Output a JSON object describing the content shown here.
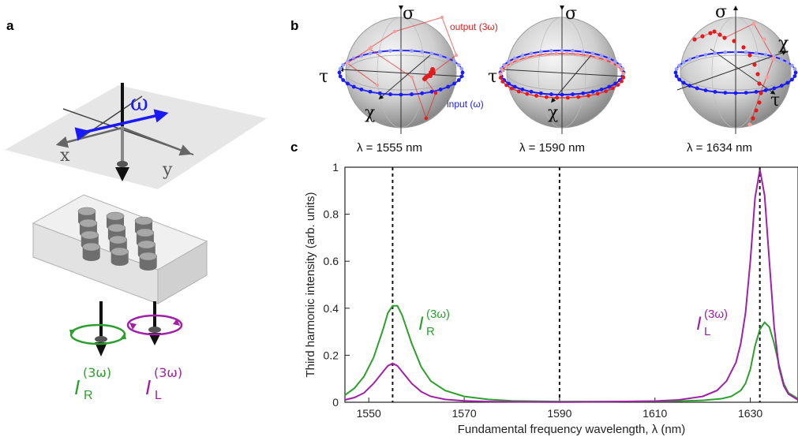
{
  "panels": {
    "a": "a",
    "b": "b",
    "c": "c"
  },
  "panel_a": {
    "omega": "ω",
    "x_axis": "x",
    "y_axis": "y",
    "ir_main": "I",
    "ir_sub": "R",
    "ir_sup": "(3ω)",
    "il_main": "I",
    "il_sub": "L",
    "il_sup": "(3ω)"
  },
  "panel_b": {
    "output_label": "output (3ω)",
    "input_label": "input (ω)",
    "spheres": [
      {
        "sigma": "σ",
        "tau": "τ",
        "chi": "χ",
        "wavelength": "λ = 1555 nm"
      },
      {
        "sigma": "σ",
        "tau": "τ",
        "chi": "χ",
        "wavelength": "λ = 1590 nm"
      },
      {
        "sigma": "σ",
        "tau": "τ",
        "chi": "χ",
        "wavelength": "λ = 1634 nm"
      }
    ]
  },
  "colors": {
    "green": "#2ca02c",
    "magenta": "#a020a8",
    "blue": "#1a1aff",
    "red": "#e41a1c"
  },
  "chart_data": {
    "type": "line",
    "xlabel": "Fundamental frequency wavelength, λ (nm)",
    "ylabel": "Third harmonic intensity (arb. units)",
    "xlim": [
      1545,
      1640
    ],
    "ylim": [
      0,
      1
    ],
    "xticks": [
      1550,
      1570,
      1590,
      1610,
      1630
    ],
    "yticks": [
      0,
      0.2,
      0.4,
      0.6,
      0.8,
      1
    ],
    "ytick_labels": [
      "0",
      "0.2",
      "0.4",
      "0.6",
      "0.8",
      "1"
    ],
    "vlines": [
      1555,
      1590,
      1632
    ],
    "grid": false,
    "series": [
      {
        "color": "#2ca02c",
        "x": [
          1545,
          1547,
          1549,
          1551,
          1553,
          1554,
          1555,
          1556,
          1557,
          1559,
          1561,
          1563,
          1566,
          1570,
          1575,
          1580,
          1590,
          1600,
          1610,
          1615,
          1620,
          1624,
          1626,
          1628,
          1629,
          1630,
          1631,
          1632,
          1633,
          1634,
          1635,
          1636,
          1637,
          1638,
          1640
        ],
        "y": [
          0.03,
          0.06,
          0.11,
          0.19,
          0.31,
          0.38,
          0.41,
          0.41,
          0.37,
          0.25,
          0.15,
          0.09,
          0.05,
          0.025,
          0.012,
          0.006,
          0.003,
          0.003,
          0.004,
          0.005,
          0.008,
          0.015,
          0.025,
          0.05,
          0.08,
          0.14,
          0.24,
          0.31,
          0.34,
          0.32,
          0.25,
          0.16,
          0.08,
          0.04,
          0.015
        ]
      },
      {
        "color": "#a020a8",
        "x": [
          1545,
          1547,
          1549,
          1551,
          1553,
          1554,
          1555,
          1556,
          1557,
          1559,
          1561,
          1563,
          1566,
          1570,
          1575,
          1580,
          1590,
          1600,
          1610,
          1615,
          1620,
          1623,
          1625,
          1627,
          1628,
          1629,
          1630,
          1631,
          1632,
          1633,
          1634,
          1635,
          1636,
          1637,
          1638,
          1640
        ],
        "y": [
          0.01,
          0.02,
          0.04,
          0.08,
          0.13,
          0.155,
          0.165,
          0.155,
          0.13,
          0.08,
          0.045,
          0.025,
          0.012,
          0.006,
          0.003,
          0.002,
          0.001,
          0.002,
          0.005,
          0.01,
          0.025,
          0.05,
          0.09,
          0.17,
          0.25,
          0.38,
          0.6,
          0.87,
          0.99,
          0.88,
          0.6,
          0.32,
          0.15,
          0.07,
          0.035,
          0.01
        ]
      }
    ]
  }
}
